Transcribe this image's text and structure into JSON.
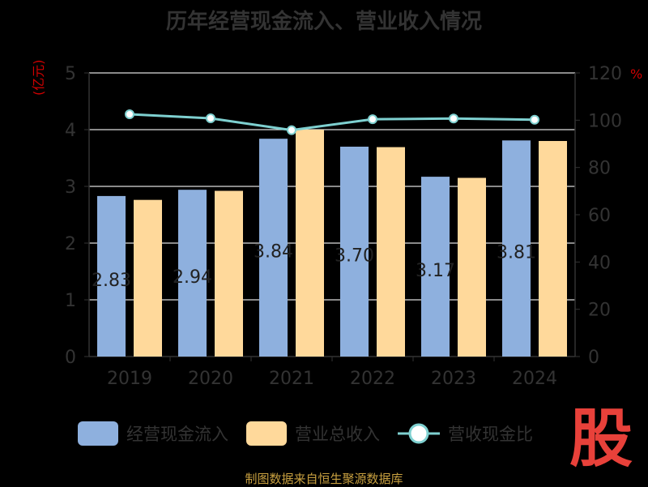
{
  "title": "历年经营现金流入、营业收入情况",
  "units": {
    "left": "(亿元)",
    "right": "%"
  },
  "legend": {
    "series1": "经营现金流入",
    "series2": "营业总收入",
    "series3": "营收现金比"
  },
  "source": "制图数据来自恒生聚源数据库",
  "logo_text": "股",
  "colors": {
    "series1": "#8eb0de",
    "series2": "#ffd99b",
    "line": "#7ed0d0",
    "grid": "#dddddd",
    "axis_text": "#333333",
    "bar_label": "#222222"
  },
  "chart_data": {
    "type": "bar",
    "categories": [
      "2019",
      "2020",
      "2021",
      "2022",
      "2023",
      "2024"
    ],
    "series": [
      {
        "name": "经营现金流入",
        "values": [
          2.83,
          2.94,
          3.84,
          3.7,
          3.17,
          3.81
        ]
      },
      {
        "name": "营业总收入",
        "values": [
          2.76,
          2.92,
          4.0,
          3.69,
          3.15,
          3.8
        ]
      },
      {
        "name": "营收现金比",
        "type": "line",
        "axis": "right",
        "values": [
          102.5,
          100.8,
          95.8,
          100.4,
          100.7,
          100.2
        ]
      }
    ],
    "bar_labels": [
      "2.83",
      "2.94",
      "3.84",
      "3.70",
      "3.17",
      "3.81"
    ],
    "ylim": [
      0,
      5
    ],
    "y_ticks": [
      "0",
      "1",
      "2",
      "3",
      "4",
      "5"
    ],
    "y2lim": [
      0,
      120
    ],
    "y2_ticks": [
      "0",
      "20",
      "40",
      "60",
      "80",
      "100",
      "120"
    ],
    "grid": true,
    "legend_position": "bottom"
  }
}
